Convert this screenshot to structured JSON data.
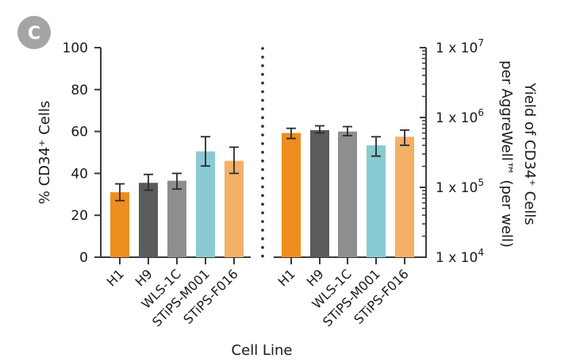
{
  "panel_label": "C",
  "chart_data": [
    {
      "type": "bar",
      "title": "",
      "categories": [
        "H1",
        "H9",
        "WLS-1C",
        "STiPS-M001",
        "STiPS-F016"
      ],
      "colors": [
        "#EE8E1F",
        "#595B5C",
        "#8D8E8D",
        "#8ACAD3",
        "#F3B066"
      ],
      "values": [
        31,
        35.5,
        36.5,
        50.5,
        46
      ],
      "error_low": [
        27,
        32,
        32.5,
        43.5,
        40
      ],
      "error_high": [
        35,
        39.5,
        40,
        57.5,
        52.5
      ],
      "ylabel": "% CD34⁺ Cells",
      "ylim": [
        0,
        100
      ],
      "yticks": [
        0,
        20,
        40,
        60,
        80,
        100
      ],
      "yscale": "linear",
      "grid": false
    },
    {
      "type": "bar",
      "title": "",
      "categories": [
        "H1",
        "H9",
        "WLS-1C",
        "STiPS-M001",
        "STiPS-F016"
      ],
      "colors": [
        "#EE8E1F",
        "#595B5C",
        "#8D8E8D",
        "#8ACAD3",
        "#F3B066"
      ],
      "values": [
        600000,
        660000,
        630000,
        400000,
        530000
      ],
      "error_low": [
        500000,
        600000,
        550000,
        280000,
        400000
      ],
      "error_high": [
        700000,
        760000,
        740000,
        530000,
        660000
      ],
      "ylabel_lines": [
        "Yield of CD34⁺ Cells",
        "per AggreWell™ (per well)"
      ],
      "ylim": [
        10000,
        10000000
      ],
      "yticks": [
        10000,
        100000,
        1000000,
        10000000
      ],
      "ytick_labels": [
        {
          "base": "1 x 10",
          "exp": "4"
        },
        {
          "base": "1 x 10",
          "exp": "5"
        },
        {
          "base": "1 x 10",
          "exp": "6"
        },
        {
          "base": "1 x 10",
          "exp": "7"
        }
      ],
      "yscale": "log",
      "yaxis_position": "right",
      "grid": false
    }
  ],
  "shared_xlabel": "Cell Line",
  "divider": "dotted"
}
